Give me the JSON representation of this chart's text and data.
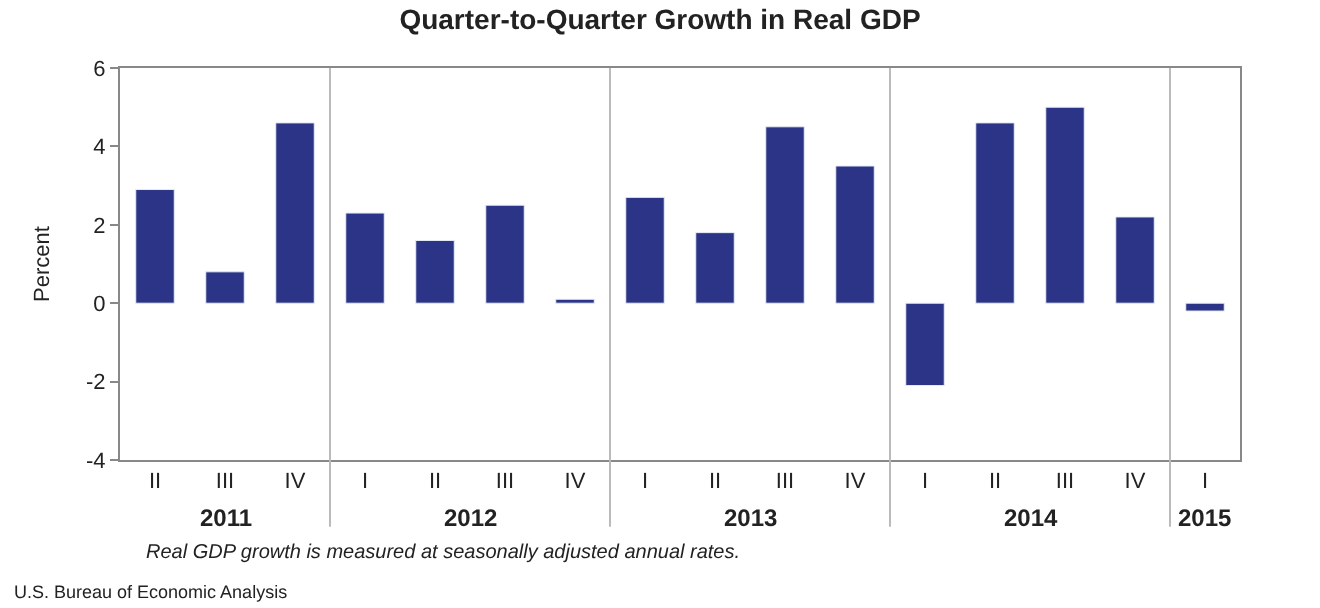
{
  "chart_data": {
    "type": "bar",
    "title": "Quarter-to-Quarter Growth in Real GDP",
    "ylabel": "Percent",
    "categories": [
      "II",
      "III",
      "IV",
      "I",
      "II",
      "III",
      "IV",
      "I",
      "II",
      "III",
      "IV",
      "I",
      "II",
      "III",
      "IV",
      "I"
    ],
    "values": [
      2.9,
      0.8,
      4.6,
      2.3,
      1.6,
      2.5,
      0.1,
      2.7,
      1.8,
      4.5,
      3.5,
      -2.1,
      4.6,
      5.0,
      2.2,
      -0.2
    ],
    "color": "#2b3486",
    "ylim": [
      -4,
      6
    ],
    "yticks": [
      -4,
      -2,
      0,
      2,
      4,
      6
    ],
    "annotations": [
      "2011",
      "2012",
      "2013",
      "2014",
      "2015",
      "Real GDP growth is measured at seasonally adjusted annual rates.",
      "U.S. Bureau of Economic Analysis"
    ]
  }
}
